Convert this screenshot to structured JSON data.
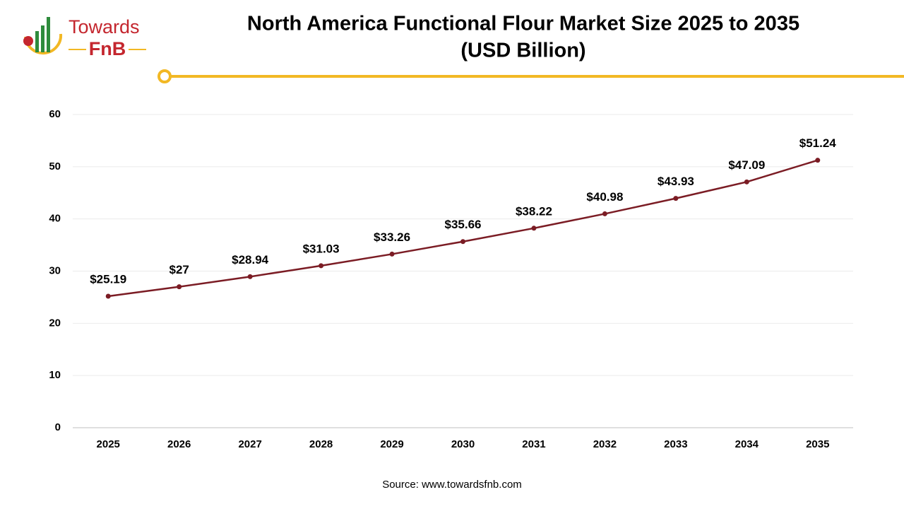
{
  "logo": {
    "line1": "Towards",
    "line2": "FnB"
  },
  "chart_data": {
    "type": "line",
    "title": "North America Functional Flour Market Size 2025 to 2035",
    "subtitle": "(USD Billion)",
    "source": "Source: www.towardsfnb.com",
    "categories": [
      "2025",
      "2026",
      "2027",
      "2028",
      "2029",
      "2030",
      "2031",
      "2032",
      "2033",
      "2034",
      "2035"
    ],
    "values": [
      25.19,
      27,
      28.94,
      31.03,
      33.26,
      35.66,
      38.22,
      40.98,
      43.93,
      47.09,
      51.24
    ],
    "value_labels": [
      "$25.19",
      "$27",
      "$28.94",
      "$31.03",
      "$33.26",
      "$35.66",
      "$38.22",
      "$40.98",
      "$43.93",
      "$47.09",
      "$51.24"
    ],
    "color": "#7b1c24",
    "ylim": [
      0,
      60
    ],
    "yticks": [
      0,
      10,
      20,
      30,
      40,
      50,
      60
    ],
    "grid": true
  }
}
